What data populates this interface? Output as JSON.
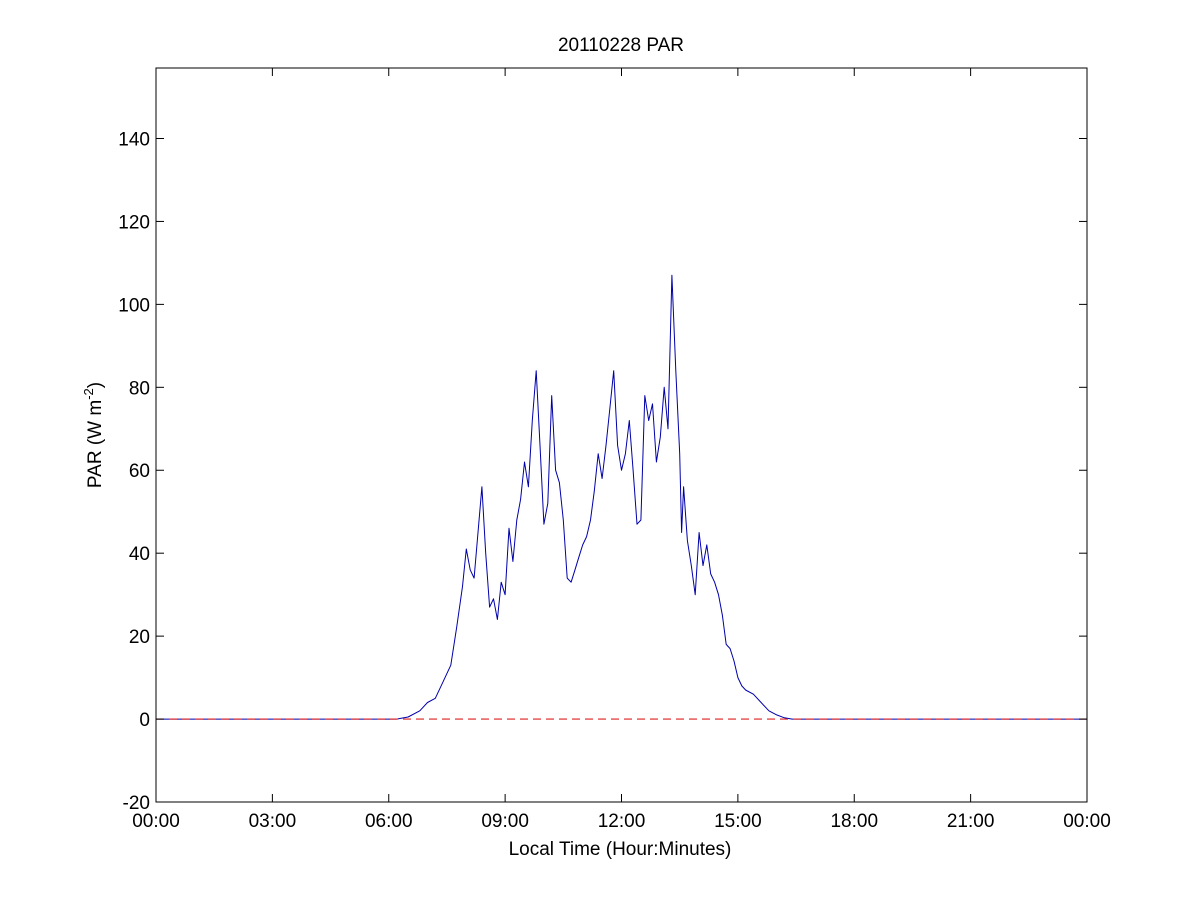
{
  "chart_data": {
    "type": "line",
    "title": "20110228 PAR",
    "xlabel": "Local Time (Hour:Minutes)",
    "ylabel_text": "PAR (W m",
    "ylabel_superscript": "-2",
    "ylabel_close": ")",
    "xlim": [
      0,
      24
    ],
    "ylim": [
      -20,
      157
    ],
    "x_ticks": [
      {
        "value": 0,
        "label": "00:00"
      },
      {
        "value": 3,
        "label": "03:00"
      },
      {
        "value": 6,
        "label": "06:00"
      },
      {
        "value": 9,
        "label": "09:00"
      },
      {
        "value": 12,
        "label": "12:00"
      },
      {
        "value": 15,
        "label": "15:00"
      },
      {
        "value": 18,
        "label": "18:00"
      },
      {
        "value": 21,
        "label": "21:00"
      },
      {
        "value": 24,
        "label": "00:00"
      }
    ],
    "y_ticks": [
      {
        "value": -20,
        "label": "-20"
      },
      {
        "value": 0,
        "label": "0"
      },
      {
        "value": 20,
        "label": "20"
      },
      {
        "value": 40,
        "label": "40"
      },
      {
        "value": 60,
        "label": "60"
      },
      {
        "value": 80,
        "label": "80"
      },
      {
        "value": 100,
        "label": "100"
      },
      {
        "value": 120,
        "label": "120"
      },
      {
        "value": 140,
        "label": "140"
      }
    ],
    "grid": false,
    "reference_line": {
      "y": 0,
      "style": "dashed",
      "color": "#dd2222"
    },
    "series": [
      {
        "color": "#0000aa",
        "x": [
          0,
          6.2,
          6.5,
          6.8,
          7.0,
          7.2,
          7.4,
          7.6,
          7.75,
          7.9,
          8.0,
          8.1,
          8.2,
          8.3,
          8.4,
          8.5,
          8.6,
          8.7,
          8.8,
          8.9,
          9.0,
          9.1,
          9.2,
          9.3,
          9.4,
          9.5,
          9.6,
          9.7,
          9.8,
          9.9,
          10.0,
          10.1,
          10.2,
          10.3,
          10.4,
          10.5,
          10.6,
          10.7,
          10.8,
          10.9,
          11.0,
          11.1,
          11.2,
          11.3,
          11.4,
          11.5,
          11.6,
          11.7,
          11.8,
          11.9,
          12.0,
          12.1,
          12.2,
          12.3,
          12.4,
          12.5,
          12.6,
          12.7,
          12.8,
          12.9,
          13.0,
          13.1,
          13.2,
          13.3,
          13.4,
          13.5,
          13.55,
          13.6,
          13.7,
          13.8,
          13.9,
          14.0,
          14.1,
          14.2,
          14.3,
          14.4,
          14.5,
          14.6,
          14.7,
          14.8,
          14.9,
          15.0,
          15.1,
          15.2,
          15.4,
          15.6,
          15.8,
          16.0,
          16.2,
          16.4,
          16.6,
          16.8,
          17.0,
          17.2,
          17.5,
          17.8,
          18.0,
          24
        ],
        "y": [
          0,
          0,
          0.5,
          2,
          4,
          5,
          9,
          13,
          22,
          32,
          41,
          36,
          34,
          45,
          56,
          40,
          27,
          29,
          24,
          33,
          30,
          46,
          38,
          48,
          53,
          62,
          56,
          72,
          84,
          66,
          47,
          52,
          78,
          60,
          57,
          48,
          34,
          33,
          36,
          39,
          42,
          44,
          48,
          55,
          64,
          58,
          66,
          75,
          84,
          66,
          60,
          64,
          72,
          60,
          47,
          48,
          78,
          72,
          76,
          62,
          68,
          80,
          70,
          107,
          84,
          64,
          45,
          56,
          43,
          37,
          30,
          45,
          37,
          42,
          35,
          33,
          30,
          25,
          18,
          17,
          14,
          10,
          8,
          7,
          6,
          4,
          2,
          1,
          0.3,
          0,
          0,
          0,
          0,
          0,
          0,
          0,
          0,
          0
        ]
      }
    ]
  }
}
